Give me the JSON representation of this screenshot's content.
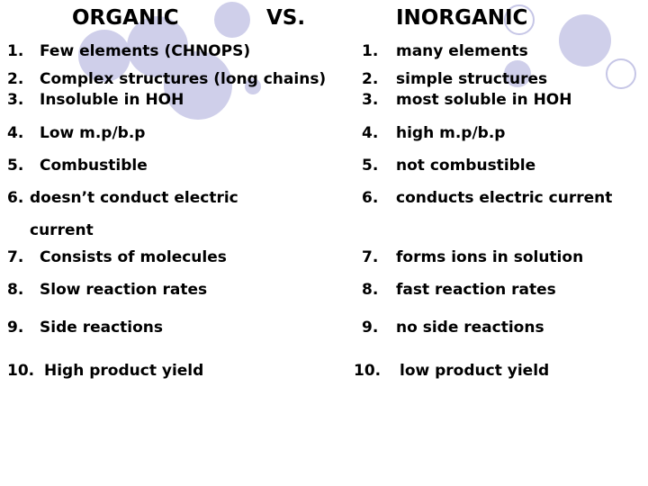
{
  "title": {
    "left": "ORGANIC",
    "middle": "VS.",
    "right": "INORGANIC"
  },
  "organic": [
    {
      "num": "1.",
      "text": "Few elements (CHNOPS)"
    },
    {
      "num": "2.",
      "text": "Complex structures (long chains)"
    },
    {
      "num": "3.",
      "text": "Insoluble in HOH"
    },
    {
      "num": "4.",
      "text": "Low m.p/b.p"
    },
    {
      "num": "5.",
      "text": "Combustible"
    },
    {
      "num": "6.",
      "text": "doesn’t conduct electric",
      "continuation": "current"
    },
    {
      "num": "7.",
      "text": "Consists of molecules"
    },
    {
      "num": "8.",
      "text": "Slow reaction rates"
    },
    {
      "num": "9.",
      "text": "Side reactions"
    },
    {
      "num": "10.",
      "text": "High product yield"
    }
  ],
  "inorganic": [
    {
      "num": "1.",
      "text": "many elements"
    },
    {
      "num": "2.",
      "text": "simple structures"
    },
    {
      "num": "3.",
      "text": "most soluble in HOH"
    },
    {
      "num": "4.",
      "text": "high m.p/b.p"
    },
    {
      "num": "5.",
      "text": "not combustible"
    },
    {
      "num": "6.",
      "text": "conducts electric current"
    },
    {
      "num": "7.",
      "text": "forms ions in solution"
    },
    {
      "num": "8.",
      "text": "fast reaction rates"
    },
    {
      "num": "9.",
      "text": "no side reactions"
    },
    {
      "num": "10.",
      "text": "low product yield"
    }
  ],
  "colors": {
    "circle_fill": "#cfcfea",
    "circle_outline": "#c6c6e6"
  }
}
